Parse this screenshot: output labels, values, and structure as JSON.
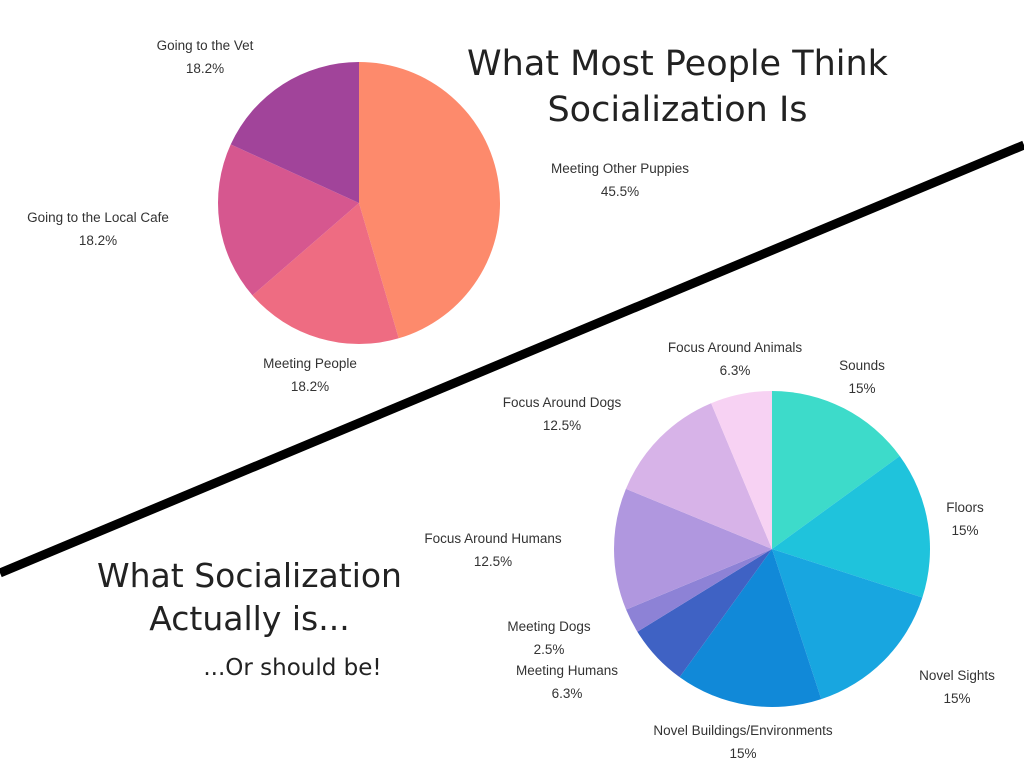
{
  "chart_data": [
    {
      "type": "pie",
      "title": "What Most People Think Socialization Is",
      "title_lines": [
        "What Most People Think",
        "Socialization Is"
      ],
      "start_angle_deg": 0,
      "direction": "clockwise",
      "slices": [
        {
          "label": "Meeting Other Puppies",
          "value_label": "45.5%",
          "value": 45.5,
          "color": "#fd8a6c"
        },
        {
          "label": "Meeting People",
          "value_label": "18.2%",
          "value": 18.2,
          "color": "#ee6c82"
        },
        {
          "label": "Going to the Local Cafe",
          "value_label": "18.2%",
          "value": 18.2,
          "color": "#d6578f"
        },
        {
          "label": "Going to the Vet",
          "value_label": "18.2%",
          "value": 18.2,
          "color": "#a1449a"
        }
      ]
    },
    {
      "type": "pie",
      "title": "What Socialization Actually is... ...Or should be!",
      "title_lines": [
        "What Socialization",
        "Actually is..."
      ],
      "subtitle": "...Or should be!",
      "start_angle_deg": 0,
      "direction": "clockwise",
      "slices": [
        {
          "label": "Sounds",
          "value_label": "15%",
          "value": 15,
          "color": "#3ddbca"
        },
        {
          "label": "Floors",
          "value_label": "15%",
          "value": 15,
          "color": "#1fc3dc"
        },
        {
          "label": "Novel Sights",
          "value_label": "15%",
          "value": 15,
          "color": "#18a6e0"
        },
        {
          "label": "Novel Buildings/Environments",
          "value_label": "15%",
          "value": 15,
          "color": "#1189d8"
        },
        {
          "label": "Meeting Humans",
          "value_label": "6.3%",
          "value": 6.3,
          "color": "#3f62c4"
        },
        {
          "label": "Meeting Dogs",
          "value_label": "2.5%",
          "value": 2.5,
          "color": "#8d82d6"
        },
        {
          "label": "Focus Around Humans",
          "value_label": "12.5%",
          "value": 12.5,
          "color": "#b097df"
        },
        {
          "label": "Focus Around Dogs",
          "value_label": "12.5%",
          "value": 12.5,
          "color": "#d7b3e8"
        },
        {
          "label": "Focus Around Animals",
          "value_label": "6.3%",
          "value": 6.3,
          "color": "#f7d2f3"
        }
      ]
    }
  ],
  "divider_color": "#000000"
}
